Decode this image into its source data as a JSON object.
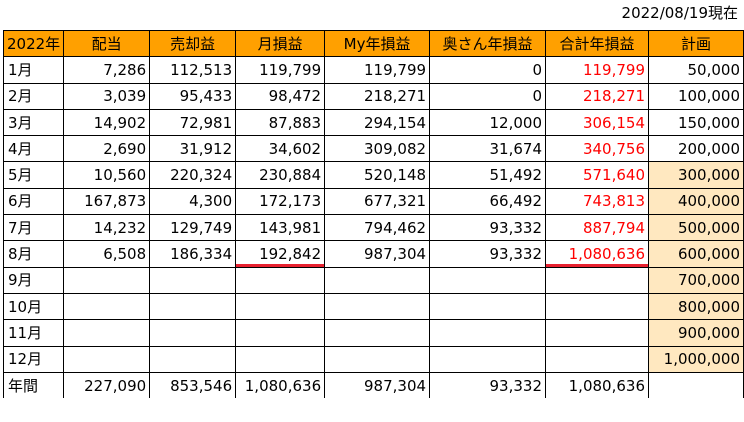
{
  "as_of": "2022/08/19現在",
  "columns": [
    "2022年",
    "配当",
    "売却益",
    "月損益",
    "My年損益",
    "奥さん年損益",
    "合計年損益",
    "計画"
  ],
  "rows": [
    {
      "month": "1月",
      "dividend": "7,286",
      "sale_gain": "112,513",
      "monthly": "119,799",
      "my_year": "119,799",
      "wife_year": "0",
      "total_year": "119,799",
      "plan": "50,000",
      "plan_highlight": false
    },
    {
      "month": "2月",
      "dividend": "3,039",
      "sale_gain": "95,433",
      "monthly": "98,472",
      "my_year": "218,271",
      "wife_year": "0",
      "total_year": "218,271",
      "plan": "100,000",
      "plan_highlight": false
    },
    {
      "month": "3月",
      "dividend": "14,902",
      "sale_gain": "72,981",
      "monthly": "87,883",
      "my_year": "294,154",
      "wife_year": "12,000",
      "total_year": "306,154",
      "plan": "150,000",
      "plan_highlight": false
    },
    {
      "month": "4月",
      "dividend": "2,690",
      "sale_gain": "31,912",
      "monthly": "34,602",
      "my_year": "309,082",
      "wife_year": "31,674",
      "total_year": "340,756",
      "plan": "200,000",
      "plan_highlight": false
    },
    {
      "month": "5月",
      "dividend": "10,560",
      "sale_gain": "220,324",
      "monthly": "230,884",
      "my_year": "520,148",
      "wife_year": "51,492",
      "total_year": "571,640",
      "plan": "300,000",
      "plan_highlight": true
    },
    {
      "month": "6月",
      "dividend": "167,873",
      "sale_gain": "4,300",
      "monthly": "172,173",
      "my_year": "677,321",
      "wife_year": "66,492",
      "total_year": "743,813",
      "plan": "400,000",
      "plan_highlight": true
    },
    {
      "month": "7月",
      "dividend": "14,232",
      "sale_gain": "129,749",
      "monthly": "143,981",
      "my_year": "794,462",
      "wife_year": "93,332",
      "total_year": "887,794",
      "plan": "500,000",
      "plan_highlight": true
    },
    {
      "month": "8月",
      "dividend": "6,508",
      "sale_gain": "186,334",
      "monthly": "192,842",
      "my_year": "987,304",
      "wife_year": "93,332",
      "total_year": "1,080,636",
      "plan": "600,000",
      "plan_highlight": true
    },
    {
      "month": "9月",
      "dividend": "",
      "sale_gain": "",
      "monthly": "",
      "my_year": "",
      "wife_year": "",
      "total_year": "",
      "plan": "700,000",
      "plan_highlight": true
    },
    {
      "month": "10月",
      "dividend": "",
      "sale_gain": "",
      "monthly": "",
      "my_year": "",
      "wife_year": "",
      "total_year": "",
      "plan": "800,000",
      "plan_highlight": true
    },
    {
      "month": "11月",
      "dividend": "",
      "sale_gain": "",
      "monthly": "",
      "my_year": "",
      "wife_year": "",
      "total_year": "",
      "plan": "900,000",
      "plan_highlight": true
    },
    {
      "month": "12月",
      "dividend": "",
      "sale_gain": "",
      "monthly": "",
      "my_year": "",
      "wife_year": "",
      "total_year": "",
      "plan": "1,000,000",
      "plan_highlight": true
    }
  ],
  "total": {
    "month": "年間",
    "dividend": "227,090",
    "sale_gain": "853,546",
    "monthly": "1,080,636",
    "my_year": "987,304",
    "wife_year": "93,332",
    "total_year": "1,080,636",
    "plan": ""
  },
  "colors": {
    "header_bg": "#ffa000",
    "plan_highlight_bg": "#ffe8c0",
    "total_year_text": "#ff0000",
    "underline": "#e8212f"
  }
}
